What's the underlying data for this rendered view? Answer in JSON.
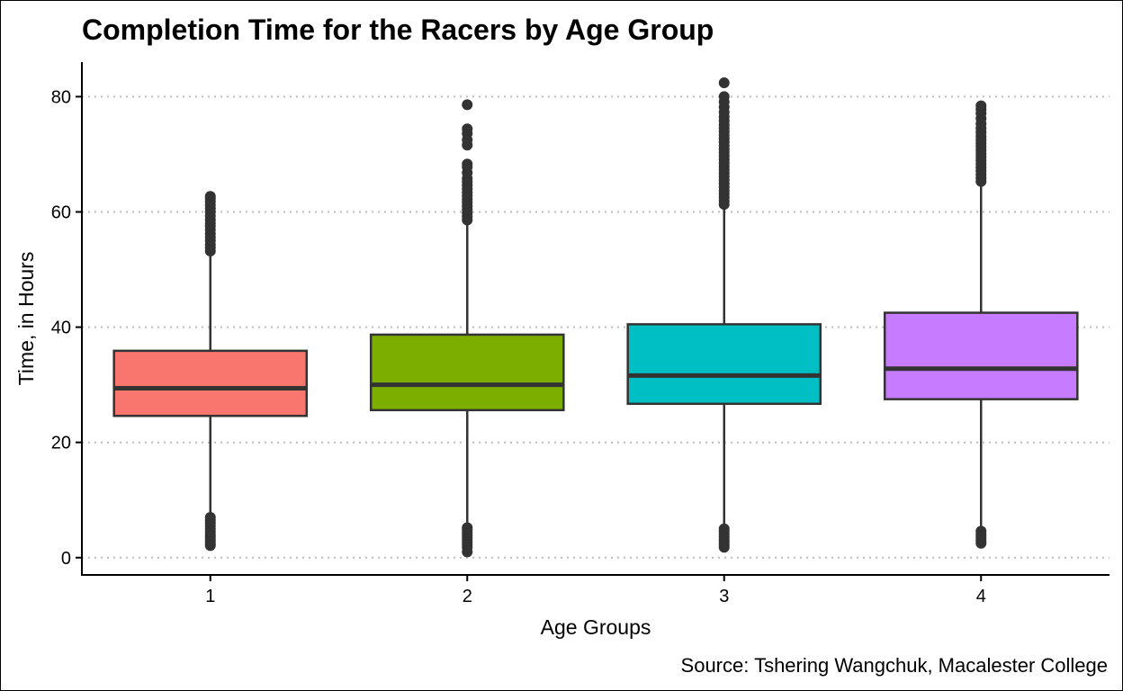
{
  "chart_data": {
    "type": "boxplot",
    "title": "Completion Time for the Racers by Age Group",
    "subtitle": "",
    "xlabel": "Age Groups",
    "ylabel": "Time, in Hours",
    "caption": "Source: Tshering Wangchuk, Macalester College",
    "ylim": [
      -3,
      86
    ],
    "yticks": [
      0,
      20,
      40,
      60,
      80
    ],
    "grid": {
      "horizontal": "dotted",
      "vertical": false
    },
    "legend": "none",
    "categories": [
      "1",
      "2",
      "3",
      "4"
    ],
    "colors": [
      "#F8766D",
      "#7CAE00",
      "#00BFC4",
      "#C77CFF"
    ],
    "boxes": [
      {
        "category": "1",
        "lower_whisker": 7.5,
        "q1": 24.6,
        "median": 29.4,
        "q3": 35.9,
        "upper_whisker": 52.9,
        "outliers": [
          2.1,
          2.4,
          2.8,
          3.2,
          3.6,
          4.0,
          4.5,
          5.0,
          5.5,
          6.0,
          6.5,
          7.0,
          53.2,
          53.8,
          54.3,
          55.0,
          55.6,
          56.2,
          56.9,
          57.5,
          58.0,
          58.6,
          59.3,
          60.0,
          60.6,
          61.2,
          61.8,
          62.3,
          62.7
        ]
      },
      {
        "category": "2",
        "lower_whisker": 5.5,
        "q1": 25.6,
        "median": 30.0,
        "q3": 38.7,
        "upper_whisker": 58.3,
        "outliers": [
          1.0,
          1.8,
          2.3,
          2.8,
          3.3,
          3.8,
          4.3,
          4.8,
          5.2,
          58.6,
          59.2,
          59.8,
          60.4,
          61.0,
          61.6,
          62.2,
          62.8,
          63.4,
          64.0,
          64.6,
          65.2,
          65.8,
          66.8,
          67.8,
          68.3,
          71.6,
          72.5,
          73.6,
          74.4,
          78.6
        ]
      },
      {
        "category": "3",
        "lower_whisker": 5.3,
        "q1": 26.7,
        "median": 31.6,
        "q3": 40.5,
        "upper_whisker": 61.0,
        "outliers": [
          1.8,
          2.2,
          2.7,
          3.1,
          3.6,
          4.1,
          4.6,
          5.0,
          61.3,
          61.9,
          62.5,
          63.1,
          63.7,
          64.3,
          64.9,
          65.5,
          66.1,
          66.7,
          67.3,
          67.9,
          68.5,
          69.1,
          69.7,
          70.3,
          70.9,
          71.5,
          72.1,
          72.7,
          73.3,
          73.9,
          74.5,
          75.1,
          75.8,
          76.5,
          77.3,
          78.2,
          79.1,
          80.0,
          82.4
        ]
      },
      {
        "category": "4",
        "lower_whisker": 5.2,
        "q1": 27.5,
        "median": 32.8,
        "q3": 42.5,
        "upper_whisker": 65.0,
        "outliers": [
          2.5,
          3.0,
          3.5,
          4.0,
          4.6,
          65.3,
          65.9,
          66.5,
          67.1,
          67.7,
          68.3,
          68.9,
          69.5,
          70.1,
          70.7,
          71.3,
          71.9,
          72.5,
          73.1,
          73.8,
          74.5,
          75.3,
          76.2,
          77.1,
          77.8,
          78.4
        ]
      }
    ]
  }
}
